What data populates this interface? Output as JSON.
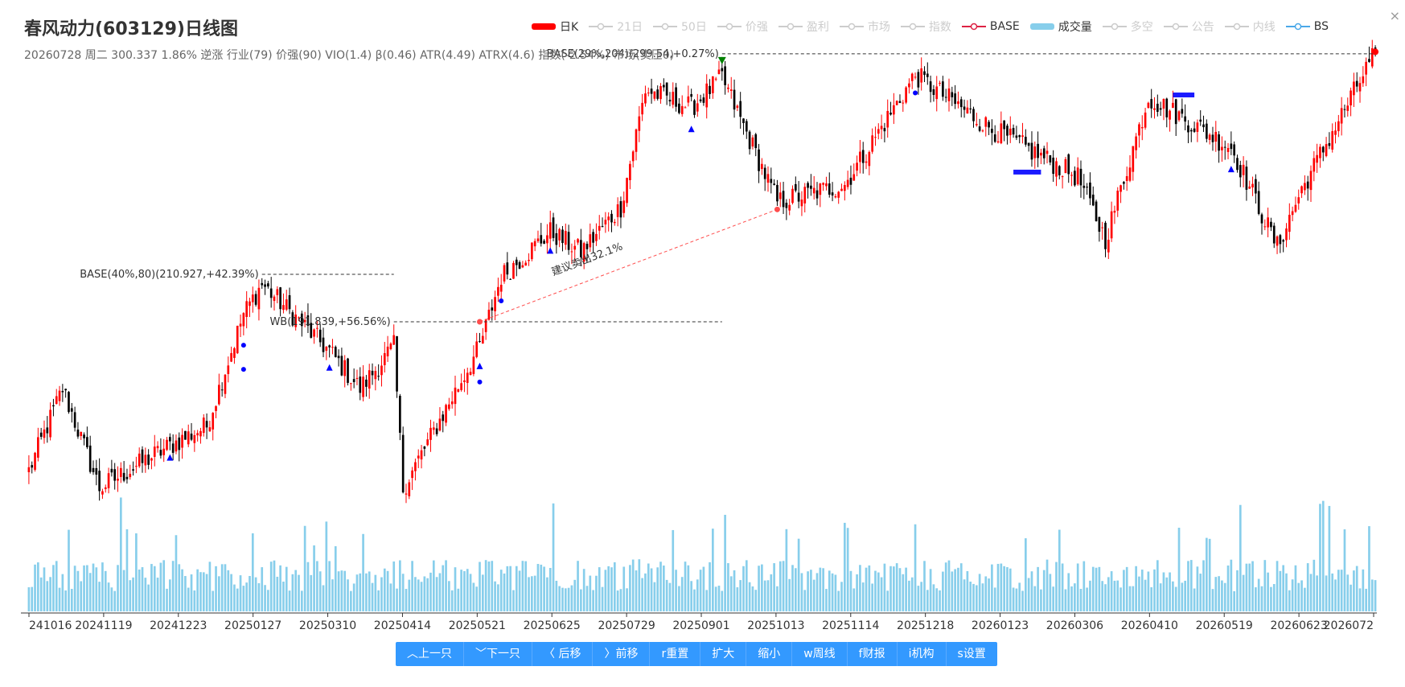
{
  "header": {
    "title": "春风动力(603129)日线图",
    "subtitle": "20260728 周二 300.337 1.86% 逆涨 行业(79) 价强(90) VIO(1.4) β(0.46) ATR(4.49) ATRX(4.6) 指数(-2.54%) 市场(卖压0)"
  },
  "legend": [
    {
      "label": "日K",
      "active": true,
      "kind": "bar",
      "color": "#ff0000"
    },
    {
      "label": "21日",
      "active": false,
      "kind": "line",
      "color": "#cccccc"
    },
    {
      "label": "50日",
      "active": false,
      "kind": "line",
      "color": "#cccccc"
    },
    {
      "label": "价强",
      "active": false,
      "kind": "line",
      "color": "#cccccc"
    },
    {
      "label": "盈利",
      "active": false,
      "kind": "line",
      "color": "#cccccc"
    },
    {
      "label": "市场",
      "active": false,
      "kind": "line",
      "color": "#cccccc"
    },
    {
      "label": "指数",
      "active": false,
      "kind": "line",
      "color": "#cccccc"
    },
    {
      "label": "BASE",
      "active": true,
      "kind": "line",
      "color": "#dd2244"
    },
    {
      "label": "成交量",
      "active": true,
      "kind": "bar",
      "color": "#87ceeb"
    },
    {
      "label": "多空",
      "active": false,
      "kind": "line",
      "color": "#cccccc"
    },
    {
      "label": "公告",
      "active": false,
      "kind": "line",
      "color": "#cccccc"
    },
    {
      "label": "内线",
      "active": false,
      "kind": "line",
      "color": "#cccccc"
    },
    {
      "label": "BS",
      "active": true,
      "kind": "line",
      "color": "#4aa8e8"
    }
  ],
  "toolbar": [
    {
      "label": "︿上一只"
    },
    {
      "label": "﹀下一只"
    },
    {
      "label": "〈 后移"
    },
    {
      "label": "〉前移"
    },
    {
      "label": "r重置"
    },
    {
      "label": "扩大"
    },
    {
      "label": "缩小"
    },
    {
      "label": "w周线"
    },
    {
      "label": "f财报"
    },
    {
      "label": "i机构"
    },
    {
      "label": "s设置"
    }
  ],
  "colors": {
    "up": "#ff0000",
    "down": "#000000",
    "volume": "#87ceeb",
    "base_bar": "#1a1aff",
    "marker_blue": "#0000ff",
    "marker_green": "#008000",
    "suggest_line": "#ff4d4d"
  },
  "chart_data": {
    "type": "candlestick",
    "x_ticks": [
      "241016",
      "20241119",
      "20241223",
      "20250127",
      "20250310",
      "20250414",
      "20250521",
      "20250625",
      "20250729",
      "20250901",
      "20251013",
      "20251114",
      "20251218",
      "20260123",
      "20260306",
      "20260410",
      "20260519",
      "20260623",
      "2026072"
    ],
    "ylim": [
      90,
      305
    ],
    "price_path": [
      {
        "date": "20241016",
        "close": 132
      },
      {
        "date": "20241101",
        "close": 165
      },
      {
        "date": "20241119",
        "close": 125
      },
      {
        "date": "20241223",
        "close": 142
      },
      {
        "date": "20250110",
        "close": 150
      },
      {
        "date": "20250127",
        "close": 195
      },
      {
        "date": "20250205",
        "close": 207
      },
      {
        "date": "20250310",
        "close": 180
      },
      {
        "date": "20250325",
        "close": 165
      },
      {
        "date": "20250410",
        "close": 182
      },
      {
        "date": "20250414",
        "close": 125
      },
      {
        "date": "20250501",
        "close": 150
      },
      {
        "date": "20250521",
        "close": 182
      },
      {
        "date": "20250601",
        "close": 210
      },
      {
        "date": "20250625",
        "close": 228
      },
      {
        "date": "20250710",
        "close": 220
      },
      {
        "date": "20250729",
        "close": 238
      },
      {
        "date": "20250810",
        "close": 285
      },
      {
        "date": "20250901",
        "close": 278
      },
      {
        "date": "20250915",
        "close": 290
      },
      {
        "date": "20251013",
        "close": 240
      },
      {
        "date": "20251114",
        "close": 247
      },
      {
        "date": "20251218",
        "close": 291
      },
      {
        "date": "20260123",
        "close": 270
      },
      {
        "date": "20260306",
        "close": 250
      },
      {
        "date": "20260320",
        "close": 225
      },
      {
        "date": "20260410",
        "close": 282
      },
      {
        "date": "20260519",
        "close": 262
      },
      {
        "date": "20260610",
        "close": 222
      },
      {
        "date": "20260623",
        "close": 245
      },
      {
        "date": "20260728",
        "close": 300.337
      }
    ],
    "annotations": [
      {
        "label": "BASE(40%,80)(210.927,+42.39%)",
        "value": 210.927
      },
      {
        "label": "WB(191.839,+56.56%)",
        "value": 191.839
      },
      {
        "label": "BASE(29%,204)(299.54,+0.27%)",
        "value": 299.54
      },
      {
        "label": "建议卖出32.1%"
      }
    ]
  }
}
